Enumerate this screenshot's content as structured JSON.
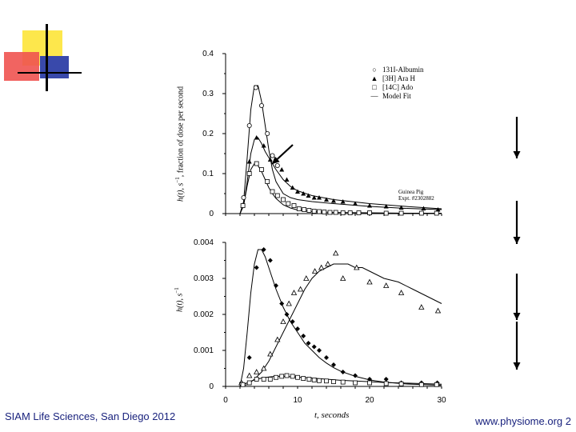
{
  "footer": {
    "left_text": "SIAM Life Sciences, San Diego 2012",
    "right_text": "www.physiome.org 2"
  },
  "colors": {
    "deco_yellow": "#fde74c",
    "deco_red": "#ef5350",
    "deco_blue": "#3949ab",
    "axis": "#000000",
    "footer_text": "#1a237e"
  },
  "chart_data": [
    {
      "type": "scatter",
      "panel": "top",
      "ylabel_main": "h(t), s",
      "ylabel_sup": "−1",
      "ylabel_rest": ", fraction of dose per second",
      "ylim": [
        0,
        0.4
      ],
      "xlim": [
        0,
        30
      ],
      "yticks": [
        "0",
        "0.1",
        "0.2",
        "0.3",
        "0.4"
      ],
      "ytick_values": [
        0,
        0.1,
        0.2,
        0.3,
        0.4
      ],
      "legend": [
        {
          "symbol": "circle",
          "text": "131I-Albumin"
        },
        {
          "symbol": "triangle",
          "text": "[3H] Ara H"
        },
        {
          "symbol": "square",
          "text": "[14C] Ado"
        },
        {
          "symbol": "line",
          "text": "Model Fit"
        }
      ],
      "annotation": [
        "Guinea Pig",
        "Expt. #2302882"
      ],
      "series": [
        {
          "name": "131I-Albumin",
          "marker": "circle",
          "x": [
            2.5,
            3.3,
            4.2,
            5.0,
            5.8,
            6.5,
            7.2
          ],
          "y": [
            0.04,
            0.22,
            0.315,
            0.27,
            0.2,
            0.145,
            0.12
          ]
        },
        {
          "name": "[3H] Ara H",
          "marker": "triangle",
          "x": [
            2.4,
            3.3,
            4.3,
            5.3,
            6.2,
            7.0,
            7.8,
            8.5,
            9.3,
            10.0,
            10.8,
            11.5,
            12.3,
            13.0,
            14.0,
            15.0,
            16.3,
            18.0,
            20.0,
            22.3,
            24.4,
            27.5,
            29.5
          ],
          "y": [
            0.02,
            0.13,
            0.19,
            0.17,
            0.135,
            0.135,
            0.11,
            0.085,
            0.065,
            0.055,
            0.05,
            0.045,
            0.04,
            0.04,
            0.035,
            0.032,
            0.03,
            0.025,
            0.02,
            0.018,
            0.015,
            0.013,
            0.01
          ]
        },
        {
          "name": "[14C] Ado",
          "marker": "square",
          "x": [
            2.4,
            3.3,
            4.3,
            5.0,
            5.8,
            6.5,
            7.2,
            8.0,
            8.7,
            9.5,
            10.2,
            10.9,
            11.6,
            12.3,
            13.0,
            13.7,
            14.5,
            15.3,
            16.3,
            17.3,
            18.5,
            20.0,
            22.3,
            24.4,
            27.2,
            29.3
          ],
          "y": [
            0.02,
            0.1,
            0.125,
            0.11,
            0.08,
            0.055,
            0.045,
            0.035,
            0.025,
            0.02,
            0.012,
            0.01,
            0.008,
            0.006,
            0.005,
            0.004,
            0.003,
            0.003,
            0.002,
            0.002,
            0.002,
            0.002,
            0.001,
            0.001,
            0.001,
            0.001
          ]
        }
      ],
      "fits": [
        {
          "name": "albumin_fit",
          "x": [
            2,
            2.5,
            3,
            3.5,
            4,
            4.5,
            5,
            5.5,
            6,
            6.5,
            7,
            8,
            9,
            10,
            12,
            15,
            20,
            25,
            30
          ],
          "y": [
            0,
            0.03,
            0.14,
            0.26,
            0.32,
            0.32,
            0.28,
            0.22,
            0.16,
            0.11,
            0.08,
            0.05,
            0.04,
            0.035,
            0.03,
            0.025,
            0.018,
            0.013,
            0.01
          ]
        },
        {
          "name": "arah_fit",
          "x": [
            2,
            2.5,
            3,
            3.5,
            4,
            4.5,
            5,
            5.5,
            6,
            6.5,
            7,
            8,
            9,
            10,
            12,
            15,
            20,
            25,
            30
          ],
          "y": [
            0,
            0.02,
            0.08,
            0.15,
            0.185,
            0.19,
            0.175,
            0.155,
            0.14,
            0.125,
            0.11,
            0.085,
            0.068,
            0.057,
            0.045,
            0.035,
            0.025,
            0.018,
            0.012
          ]
        },
        {
          "name": "ado_fit",
          "x": [
            2,
            2.5,
            3,
            3.5,
            4,
            4.5,
            5,
            5.5,
            6,
            6.5,
            7,
            8,
            9,
            10,
            12,
            15,
            20,
            25,
            30
          ],
          "y": [
            0,
            0.02,
            0.07,
            0.11,
            0.125,
            0.12,
            0.105,
            0.085,
            0.065,
            0.05,
            0.038,
            0.022,
            0.014,
            0.009,
            0.005,
            0.003,
            0.002,
            0.001,
            0.001
          ]
        }
      ]
    },
    {
      "type": "scatter",
      "panel": "bottom",
      "ylabel_main": "h(t), s",
      "ylabel_sup": "−1",
      "xlabel": "t, seconds",
      "ylim": [
        0,
        0.004
      ],
      "xlim": [
        0,
        30
      ],
      "yticks": [
        "0",
        "0.001",
        "0.002",
        "0.003",
        "0.004"
      ],
      "ytick_values": [
        0,
        0.001,
        0.002,
        0.003,
        0.004
      ],
      "xticks": [
        "0",
        "10",
        "20",
        "30"
      ],
      "xtick_values": [
        0,
        10,
        20,
        30
      ],
      "series": [
        {
          "name": "filled diamonds",
          "marker": "diamond",
          "x": [
            2.2,
            3.3,
            4.3,
            5.3,
            6.2,
            7.0,
            7.8,
            8.5,
            9.3,
            10.0,
            10.8,
            11.5,
            12.3,
            13.0,
            14.0,
            15.0,
            16.3,
            18.0,
            20.0,
            22.3,
            24.4,
            27.2,
            29.4
          ],
          "y": [
            0.0001,
            0.0008,
            0.0033,
            0.0038,
            0.0035,
            0.0028,
            0.0023,
            0.002,
            0.0018,
            0.0016,
            0.0014,
            0.0012,
            0.0011,
            0.001,
            0.0008,
            0.0006,
            0.0004,
            0.0003,
            0.0002,
            0.0002,
            0.0001,
            0.0001,
            0.0001
          ]
        },
        {
          "name": "open triangles",
          "marker": "triangle-open",
          "x": [
            2.2,
            3.3,
            4.3,
            5.3,
            6.2,
            7.2,
            8.0,
            8.8,
            9.5,
            10.4,
            11.2,
            12.4,
            13.3,
            14.2,
            15.3,
            16.3,
            18.2,
            20.0,
            22.3,
            24.4,
            27.2,
            29.5
          ],
          "y": [
            0.0001,
            0.0003,
            0.0004,
            0.0005,
            0.0009,
            0.0013,
            0.0018,
            0.0023,
            0.0026,
            0.0027,
            0.003,
            0.0032,
            0.0033,
            0.0034,
            0.0037,
            0.003,
            0.0033,
            0.0029,
            0.0028,
            0.0026,
            0.0022,
            0.0021
          ]
        },
        {
          "name": "open squares",
          "marker": "square",
          "x": [
            2.4,
            3.3,
            4.3,
            5.3,
            6.2,
            7.0,
            7.8,
            8.5,
            9.3,
            10.0,
            10.8,
            11.6,
            12.3,
            13.0,
            14.0,
            15.0,
            16.3,
            18.0,
            20.0,
            22.3,
            24.4,
            27.2,
            29.3
          ],
          "y": [
            5e-05,
            0.0001,
            0.0002,
            0.0002,
            0.0002,
            0.00025,
            0.00028,
            0.0003,
            0.00028,
            0.00025,
            0.00022,
            0.0002,
            0.00018,
            0.00016,
            0.00015,
            0.00013,
            0.00012,
            0.0001,
            0.0001,
            8e-05,
            7e-05,
            5e-05,
            5e-05
          ]
        }
      ],
      "fits": [
        {
          "name": "diamond_fit",
          "x": [
            2,
            2.5,
            3,
            3.5,
            4,
            4.5,
            5,
            5.5,
            6,
            6.5,
            7,
            8,
            9,
            10,
            11,
            12,
            13,
            14,
            15,
            16,
            18,
            20,
            22,
            25,
            30
          ],
          "y": [
            0,
            0.0005,
            0.0015,
            0.0026,
            0.0034,
            0.0038,
            0.0038,
            0.0036,
            0.0033,
            0.003,
            0.0027,
            0.0022,
            0.0018,
            0.0015,
            0.0012,
            0.001,
            0.0008,
            0.00065,
            0.00052,
            0.00042,
            0.00028,
            0.00018,
            0.00012,
            7e-05,
            3e-05
          ]
        },
        {
          "name": "triangle_fit",
          "x": [
            2,
            3,
            4,
            5,
            6,
            7,
            8,
            9,
            10,
            11,
            12,
            13,
            14,
            15,
            16,
            17,
            18,
            19,
            20,
            22,
            24,
            26,
            28,
            30
          ],
          "y": [
            0,
            5e-05,
            0.0002,
            0.0004,
            0.0007,
            0.0011,
            0.0015,
            0.0019,
            0.0023,
            0.0027,
            0.003,
            0.0032,
            0.0033,
            0.0034,
            0.0034,
            0.0034,
            0.0033,
            0.0033,
            0.0032,
            0.003,
            0.0029,
            0.0027,
            0.0025,
            0.0023
          ]
        },
        {
          "name": "square_fit",
          "x": [
            2,
            3,
            4,
            5,
            6,
            7,
            8,
            9,
            10,
            12,
            14,
            16,
            18,
            20,
            22,
            25,
            30
          ],
          "y": [
            0,
            0.0001,
            0.00018,
            0.00023,
            0.00026,
            0.00028,
            0.00028,
            0.00027,
            0.00026,
            0.00023,
            0.0002,
            0.00017,
            0.00015,
            0.00013,
            0.00011,
            9e-05,
            6e-05
          ]
        }
      ]
    }
  ]
}
